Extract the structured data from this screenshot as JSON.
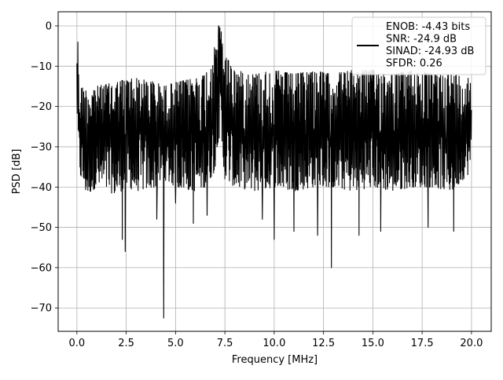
{
  "chart_data": {
    "type": "line",
    "title": "",
    "xlabel": "Frequency [MHz]",
    "ylabel": "PSD [dB]",
    "xlim": [
      -0.95,
      21.0
    ],
    "ylim": [
      -75.8,
      3.5
    ],
    "xticks": [
      0.0,
      2.5,
      5.0,
      7.5,
      10.0,
      12.5,
      15.0,
      17.5,
      20.0
    ],
    "xtick_labels": [
      "0.0",
      "2.5",
      "5.0",
      "7.5",
      "10.0",
      "12.5",
      "15.0",
      "17.5",
      "20.0"
    ],
    "yticks": [
      0,
      -10,
      -20,
      -30,
      -40,
      -50,
      -60,
      -70
    ],
    "ytick_labels": [
      "0",
      "−10",
      "−20",
      "−30",
      "−40",
      "−50",
      "−60",
      "−70"
    ],
    "grid": true,
    "legend_placement": "upper-right",
    "series": [
      {
        "name": "ENOB: -4.43 bits\nSNR: -24.9 dB\nSINAD: -24.93 dB\nSFDR: 0.26",
        "color": "#000000",
        "x": [
          0.0,
          0.05,
          0.1,
          0.2,
          0.5,
          1.0,
          2.0,
          2.5,
          3.0,
          4.0,
          4.4,
          5.0,
          6.0,
          6.5,
          7.0,
          7.1,
          7.2,
          7.3,
          7.5,
          8.0,
          9.0,
          10.0,
          11.0,
          12.0,
          12.9,
          14.0,
          15.0,
          16.0,
          17.0,
          18.0,
          19.0,
          20.0
        ],
        "envelope_upper": [
          -6,
          -4,
          -15,
          -15,
          -16,
          -15,
          -14,
          -13,
          -13,
          -14,
          -15,
          -14,
          -13,
          -12,
          -5,
          -1,
          0,
          -1,
          -7,
          -11,
          -12,
          -11,
          -12,
          -11,
          -12,
          -11,
          -11,
          -12,
          -11,
          -12,
          -12,
          -13
        ],
        "envelope_lower": [
          -20,
          -30,
          -35,
          -38,
          -42,
          -40,
          -42,
          -40,
          -41,
          -40,
          -38,
          -40,
          -41,
          -40,
          -36,
          -30,
          -28,
          -30,
          -38,
          -40,
          -41,
          -40,
          -41,
          -40,
          -40,
          -41,
          -40,
          -41,
          -40,
          -40,
          -41,
          -36
        ],
        "dips": [
          {
            "x": 2.45,
            "y": -56
          },
          {
            "x": 2.3,
            "y": -53
          },
          {
            "x": 4.4,
            "y": -72.5
          },
          {
            "x": 4.05,
            "y": -48
          },
          {
            "x": 5.0,
            "y": -44
          },
          {
            "x": 5.9,
            "y": -49
          },
          {
            "x": 6.6,
            "y": -47
          },
          {
            "x": 9.4,
            "y": -48
          },
          {
            "x": 10.0,
            "y": -53
          },
          {
            "x": 11.0,
            "y": -51
          },
          {
            "x": 12.2,
            "y": -52
          },
          {
            "x": 12.9,
            "y": -60
          },
          {
            "x": 14.3,
            "y": -52
          },
          {
            "x": 15.4,
            "y": -51
          },
          {
            "x": 17.8,
            "y": -50
          },
          {
            "x": 19.1,
            "y": -51
          }
        ],
        "spikes": [
          {
            "x": 0.05,
            "y": -4
          },
          {
            "x": 7.18,
            "y": 0
          },
          {
            "x": 7.25,
            "y": -0.5
          }
        ]
      }
    ]
  }
}
